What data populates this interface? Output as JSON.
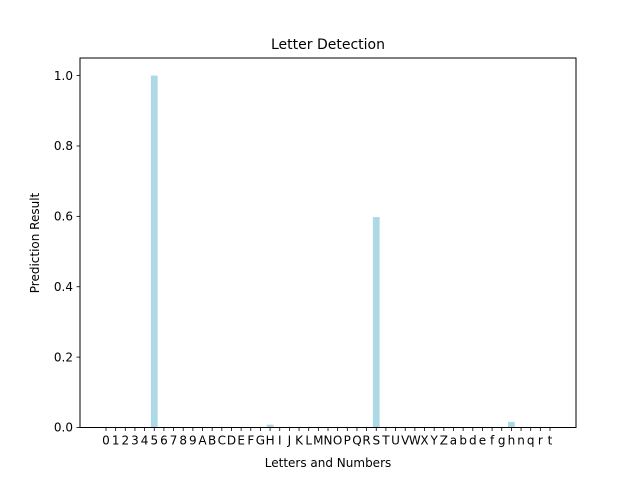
{
  "chart_data": {
    "type": "bar",
    "title": "Letter Detection",
    "xlabel": "Letters and Numbers",
    "ylabel": "Prediction Result",
    "ylim": [
      0,
      1.05
    ],
    "yticks": [
      "0.0",
      "0.2",
      "0.4",
      "0.6",
      "0.8",
      "1.0"
    ],
    "grid": false,
    "bar_color": "#add8e6",
    "categories": [
      "0",
      "1",
      "2",
      "3",
      "4",
      "5",
      "6",
      "7",
      "8",
      "9",
      "A",
      "B",
      "C",
      "D",
      "E",
      "F",
      "G",
      "H",
      "I",
      "J",
      "K",
      "L",
      "M",
      "N",
      "O",
      "P",
      "Q",
      "R",
      "S",
      "T",
      "U",
      "V",
      "W",
      "X",
      "Y",
      "Z",
      "a",
      "b",
      "d",
      "e",
      "f",
      "g",
      "h",
      "n",
      "q",
      "r",
      "t"
    ],
    "values": [
      0,
      0,
      0,
      0,
      0,
      1.0,
      0,
      0,
      0,
      0,
      0,
      0,
      0,
      0,
      0,
      0,
      0,
      0.008,
      0,
      0,
      0,
      0,
      0,
      0,
      0,
      0,
      0,
      0,
      0.598,
      0,
      0,
      0,
      0,
      0,
      0,
      0,
      0,
      0,
      0,
      0,
      0,
      0,
      0.016,
      0,
      0,
      0,
      0
    ]
  }
}
